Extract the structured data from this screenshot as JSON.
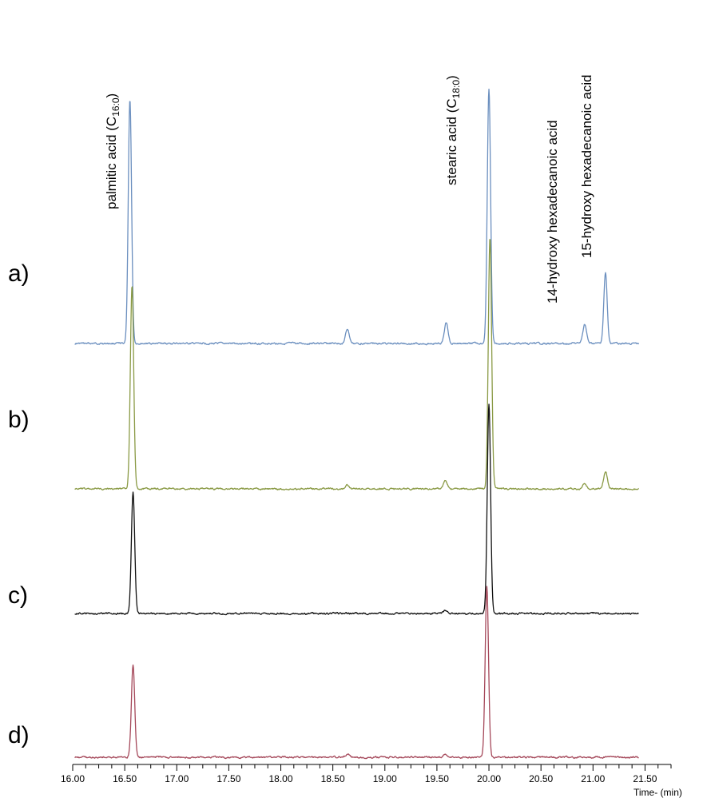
{
  "chart_data": {
    "type": "line",
    "xlabel": "Time- (min)",
    "xlim": [
      16.0,
      21.75
    ],
    "x_tick_labels": [
      "16.00",
      "16.50",
      "17.00",
      "17.50",
      "18.00",
      "18.50",
      "19.00",
      "19.50",
      "20.00",
      "20.50",
      "21.00",
      "21.50"
    ],
    "x_tick_values": [
      16.0,
      16.5,
      17.0,
      17.5,
      18.0,
      18.5,
      19.0,
      19.5,
      20.0,
      20.5,
      21.0,
      21.5
    ],
    "trace_range": [
      16.02,
      21.44
    ],
    "peak_labels": [
      {
        "id": "palmitic",
        "prefix": "palmitic acid (C",
        "sub": "16:0",
        "suffix": ")",
        "time": 16.55
      },
      {
        "id": "stearic",
        "prefix": "stearic acid (C",
        "sub": "18:0",
        "suffix": ")",
        "time": 20.0
      },
      {
        "id": "hydroxy14",
        "prefix": "14-hydroxy hexadecanoic acid",
        "sub": "",
        "suffix": "",
        "time": 20.92
      },
      {
        "id": "hydroxy15",
        "prefix": "15-hydroxy hexadecanoic acid",
        "sub": "",
        "suffix": "",
        "time": 21.12
      }
    ],
    "series": [
      {
        "name": "a)",
        "color": "#6b8fbf",
        "baseline": 0,
        "peaks": [
          {
            "time": 16.55,
            "height": 305
          },
          {
            "time": 18.64,
            "height": 18
          },
          {
            "time": 19.59,
            "height": 26
          },
          {
            "time": 20.0,
            "height": 318
          },
          {
            "time": 20.92,
            "height": 24
          },
          {
            "time": 21.12,
            "height": 88
          }
        ]
      },
      {
        "name": "b)",
        "color": "#8a9a45",
        "baseline": 0,
        "peaks": [
          {
            "time": 16.57,
            "height": 255
          },
          {
            "time": 18.64,
            "height": 5
          },
          {
            "time": 19.58,
            "height": 10
          },
          {
            "time": 20.01,
            "height": 314
          },
          {
            "time": 20.92,
            "height": 6
          },
          {
            "time": 21.12,
            "height": 22
          }
        ]
      },
      {
        "name": "c)",
        "color": "#111111",
        "baseline": 0,
        "peaks": [
          {
            "time": 16.58,
            "height": 152
          },
          {
            "time": 19.58,
            "height": 4
          },
          {
            "time": 20.0,
            "height": 262
          }
        ]
      },
      {
        "name": "d)",
        "color": "#a5485a",
        "baseline": 0,
        "peaks": [
          {
            "time": 16.58,
            "height": 115
          },
          {
            "time": 18.64,
            "height": 4
          },
          {
            "time": 19.58,
            "height": 4
          },
          {
            "time": 19.98,
            "height": 213
          }
        ]
      }
    ]
  }
}
